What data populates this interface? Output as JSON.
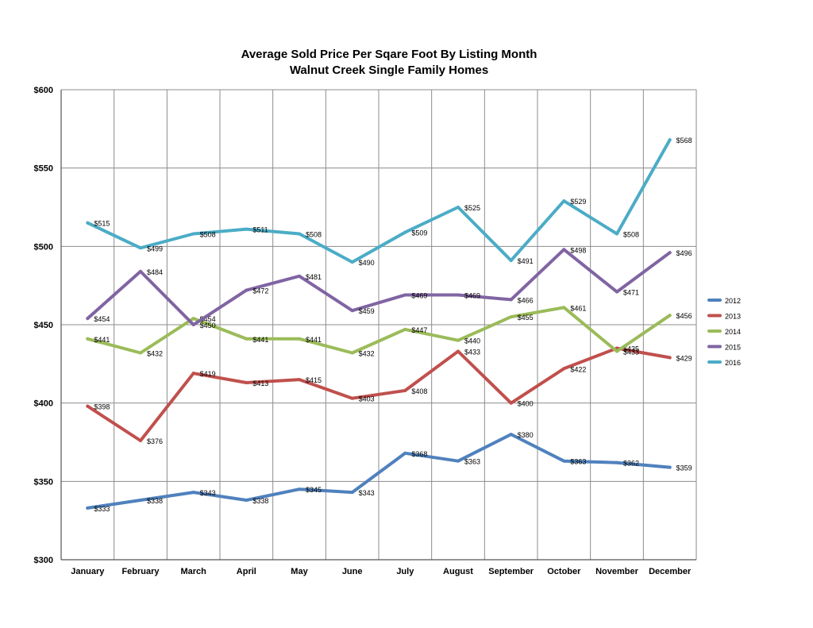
{
  "chart_data": {
    "type": "line",
    "title": "Average Sold Price Per Sqare Foot By Listing Month",
    "subtitle": "Walnut Creek Single Family Homes",
    "xlabel": "",
    "ylabel": "",
    "categories": [
      "January",
      "February",
      "March",
      "April",
      "May",
      "June",
      "July",
      "August",
      "September",
      "October",
      "November",
      "December"
    ],
    "ylim": [
      300,
      600
    ],
    "yticks": [
      300,
      350,
      400,
      450,
      500,
      550,
      600
    ],
    "ytick_labels": [
      "$300",
      "$350",
      "$400",
      "$450",
      "$500",
      "$550",
      "$600"
    ],
    "grid": true,
    "legend_position": "right",
    "series": [
      {
        "name": "2012",
        "color": "#4f81bd",
        "values": [
          333,
          338,
          343,
          338,
          345,
          343,
          368,
          363,
          380,
          363,
          362,
          359
        ],
        "labels": [
          "$333",
          "$338",
          "$343",
          "$338",
          "$345",
          "$343",
          "$368",
          "$363",
          "$380",
          "$363",
          "$362",
          "$359"
        ]
      },
      {
        "name": "2013",
        "color": "#c0504d",
        "values": [
          398,
          376,
          419,
          413,
          415,
          403,
          408,
          433,
          400,
          422,
          435,
          429
        ],
        "labels": [
          "$398",
          "$376",
          "$419",
          "$413",
          "$415",
          "$403",
          "$408",
          "$433",
          "$400",
          "$422",
          "$435",
          "$429"
        ]
      },
      {
        "name": "2014",
        "color": "#9bbb59",
        "values": [
          441,
          432,
          454,
          441,
          441,
          432,
          447,
          440,
          455,
          461,
          433,
          456
        ],
        "labels": [
          "$441",
          "$432",
          "$454",
          "$441",
          "$441",
          "$432",
          "$447",
          "$440",
          "$455",
          "$461",
          "$433",
          "$456"
        ]
      },
      {
        "name": "2015",
        "color": "#8064a2",
        "values": [
          454,
          484,
          450,
          472,
          481,
          459,
          469,
          469,
          466,
          498,
          471,
          496
        ],
        "labels": [
          "$454",
          "$484",
          "$450",
          "$472",
          "$481",
          "$459",
          "$469",
          "$469",
          "$466",
          "$498",
          "$471",
          "$496"
        ]
      },
      {
        "name": "2016",
        "color": "#4bacc6",
        "values": [
          515,
          499,
          508,
          511,
          508,
          490,
          509,
          525,
          491,
          529,
          508,
          568
        ],
        "labels": [
          "$515",
          "$499",
          "$508",
          "$511",
          "$508",
          "$490",
          "$509",
          "$525",
          "$491",
          "$529",
          "$508",
          "$568"
        ]
      }
    ]
  }
}
